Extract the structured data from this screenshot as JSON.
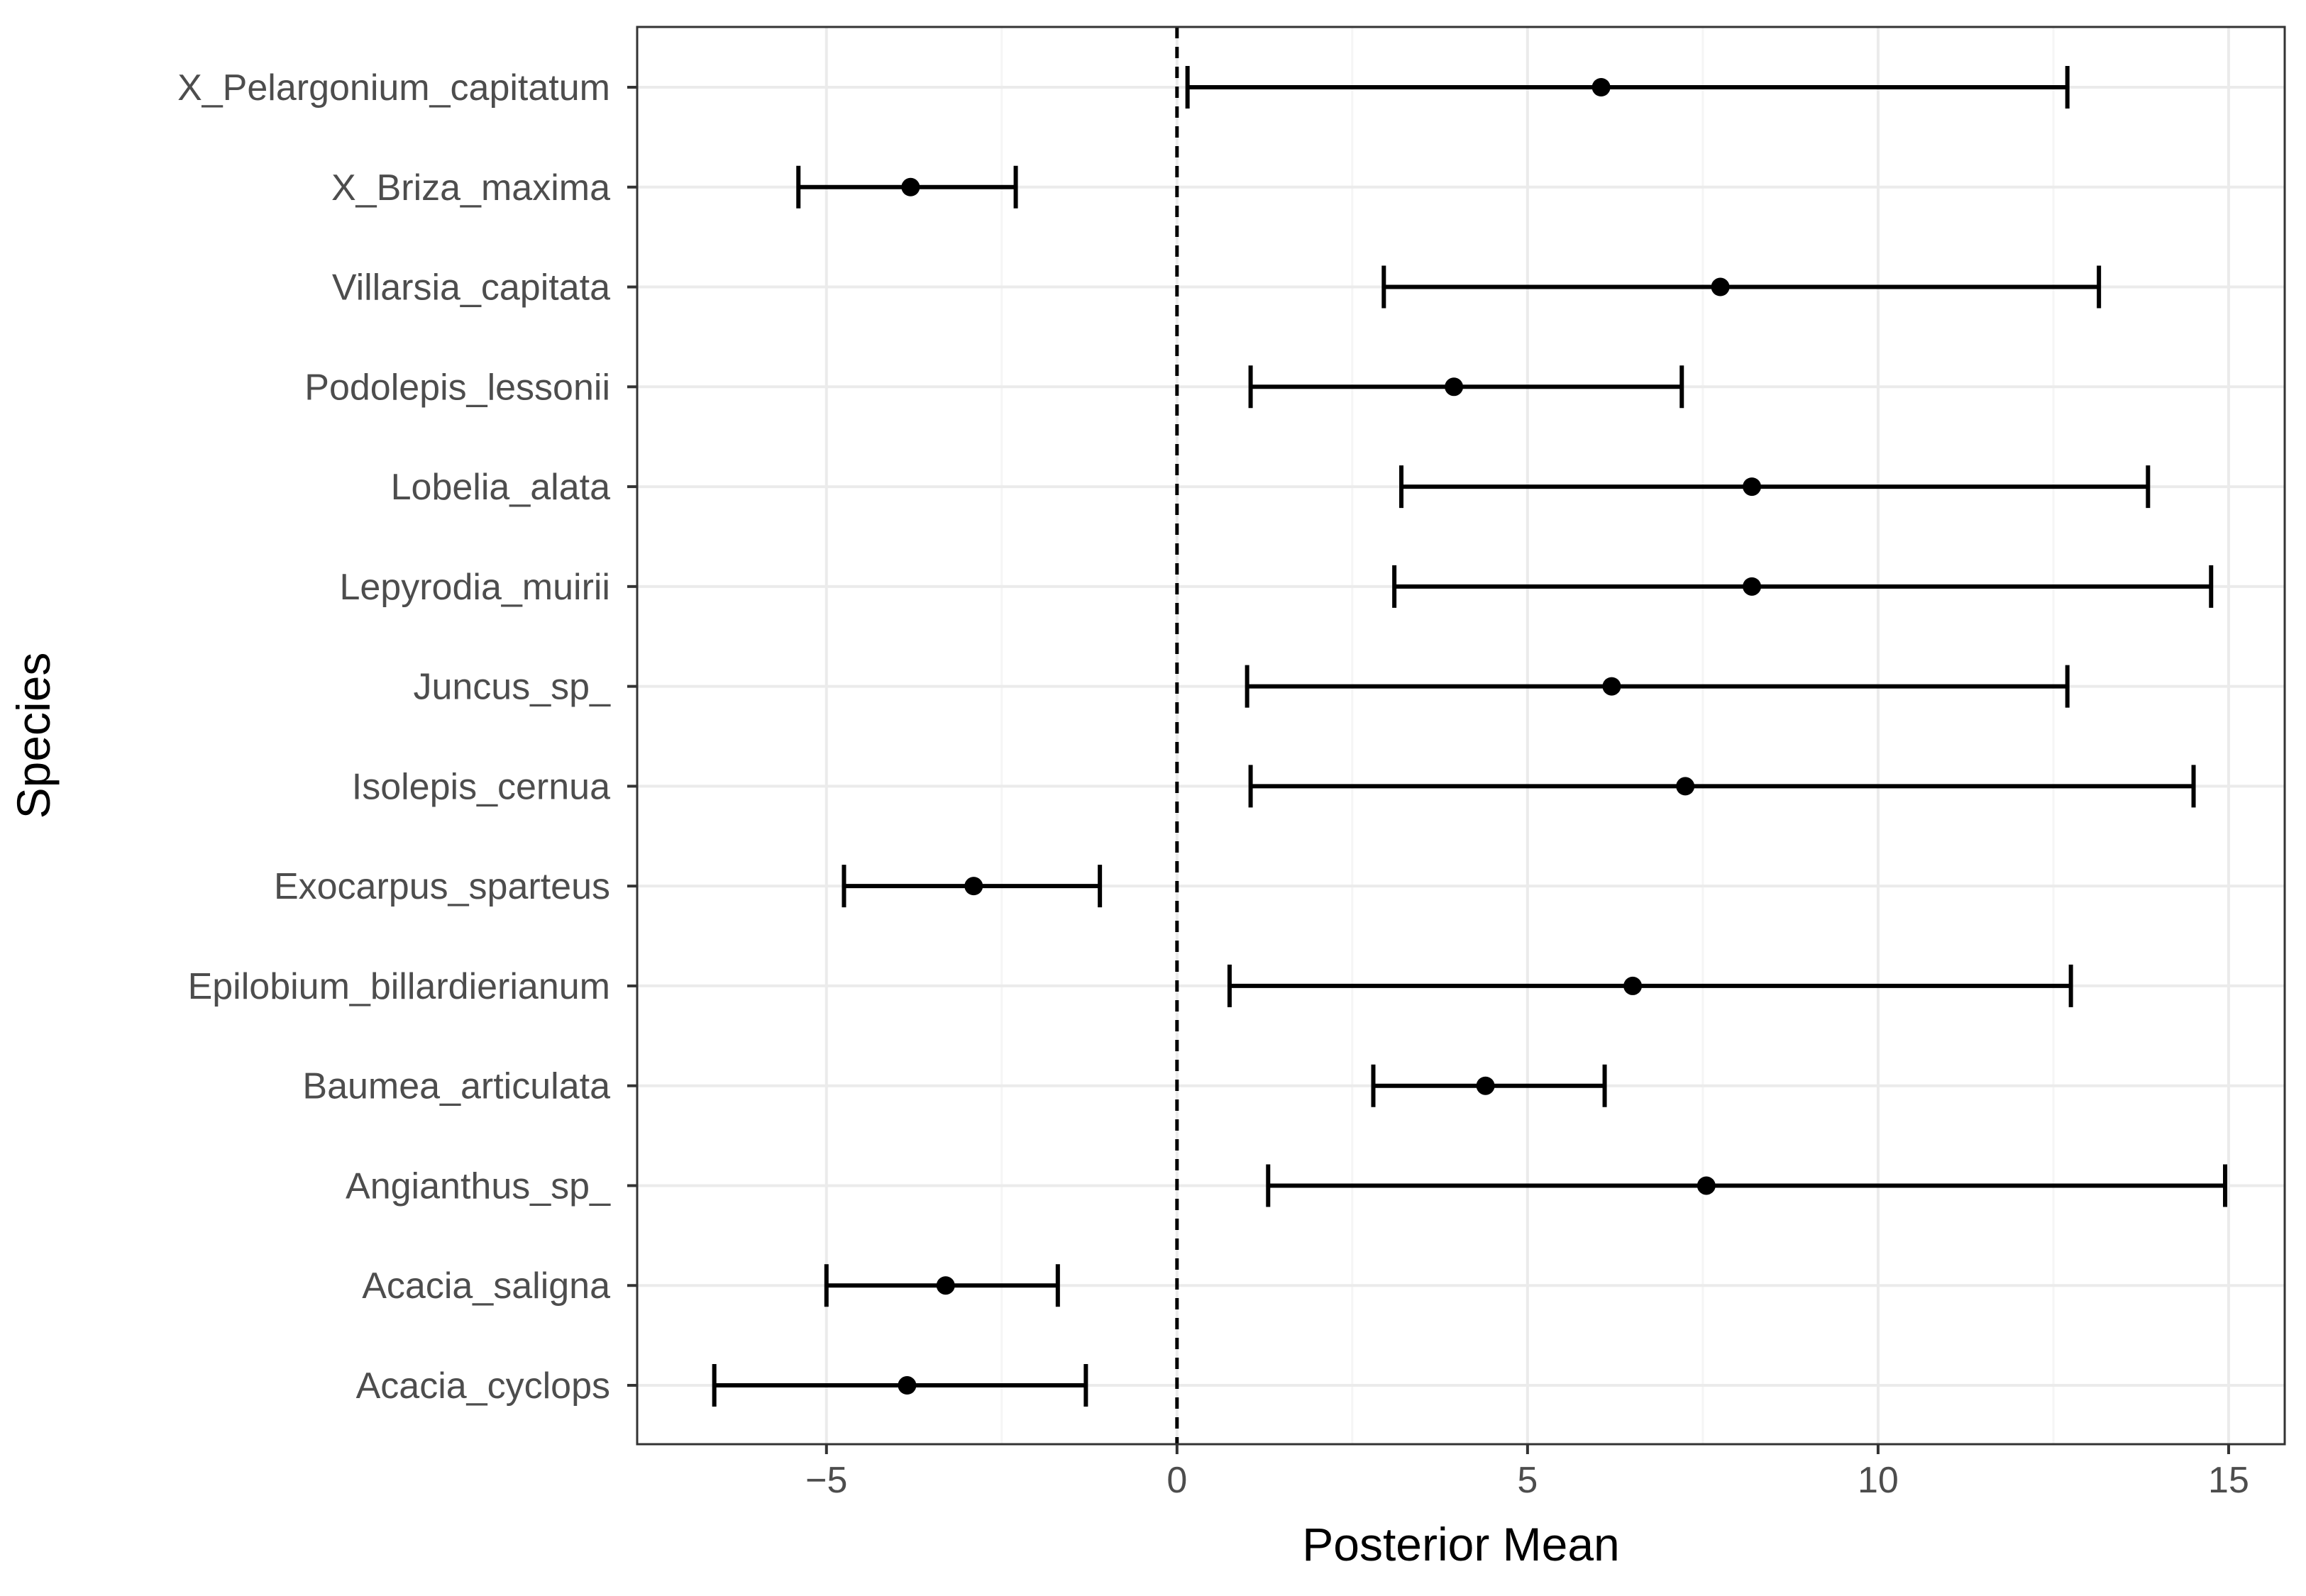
{
  "chart_data": {
    "type": "scatter",
    "subtype": "point-range",
    "title": "",
    "xlabel": "Posterior Mean",
    "ylabel": "Species",
    "xlim": [
      -7.7,
      15.8
    ],
    "x_ticks": [
      -5,
      0,
      5,
      10,
      15
    ],
    "x_tick_labels": [
      "−5",
      "0",
      "5",
      "10",
      "15"
    ],
    "reference_line": {
      "x": 0,
      "style": "dashed"
    },
    "grid": true,
    "theme": "black-and-white",
    "colors": {
      "panel_border": "#333333",
      "grid_major": "#ebebeb",
      "grid_minor": "#f5f5f5",
      "marks": "#000000",
      "tick_label": "#4d4d4d"
    },
    "categories": [
      "X_Pelargonium_capitatum",
      "X_Briza_maxima",
      "Villarsia_capitata",
      "Podolepis_lessonii",
      "Lobelia_alata",
      "Lepyrodia_muirii",
      "Juncus_sp_",
      "Isolepis_cernua",
      "Exocarpus_sparteus",
      "Epilobium_billardierianum",
      "Baumea_articulata",
      "Angianthus_sp_",
      "Acacia_saligna",
      "Acacia_cyclops"
    ],
    "mean": [
      6.05,
      -3.8,
      7.75,
      3.95,
      8.2,
      8.2,
      6.2,
      7.25,
      -2.9,
      6.5,
      4.4,
      7.55,
      -3.3,
      -3.85
    ],
    "lower": [
      0.15,
      -5.4,
      2.95,
      1.05,
      3.2,
      3.1,
      1.0,
      1.05,
      -4.75,
      0.75,
      2.8,
      1.3,
      -5.0,
      -6.6
    ],
    "upper": [
      12.7,
      -2.3,
      13.15,
      7.2,
      13.85,
      14.75,
      12.7,
      14.5,
      -1.1,
      12.75,
      6.1,
      14.95,
      -1.7,
      -1.3
    ]
  }
}
